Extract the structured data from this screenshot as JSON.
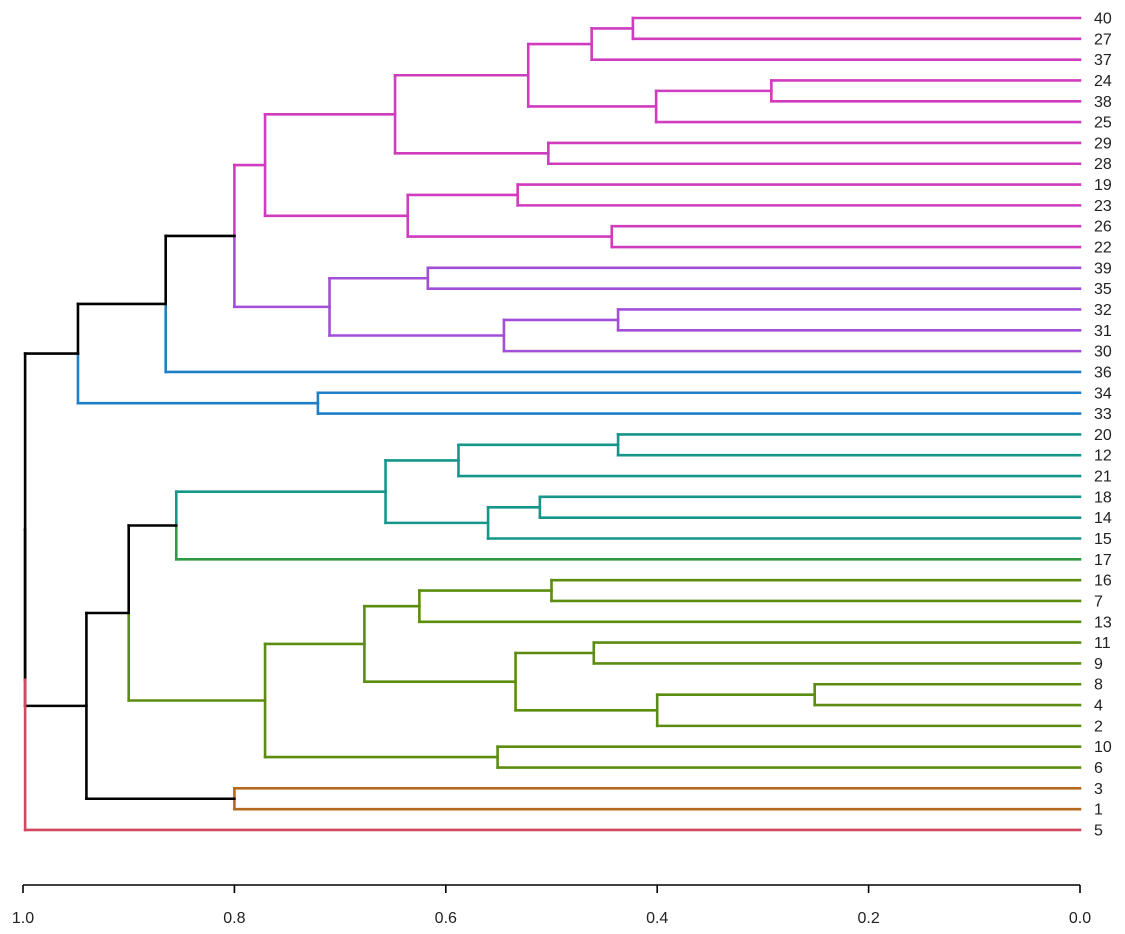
{
  "chart_data": {
    "type": "dendrogram",
    "orientation": "horizontal",
    "xlim": [
      1.0,
      0.0
    ],
    "x_ticks": [
      1.0,
      0.8,
      0.6,
      0.4,
      0.2,
      0.0
    ],
    "x_tick_labels": [
      "1.0",
      "0.8",
      "0.6",
      "0.4",
      "0.2",
      "0.0"
    ],
    "leaf_order": [
      "40",
      "27",
      "37",
      "24",
      "38",
      "25",
      "29",
      "28",
      "19",
      "23",
      "26",
      "22",
      "39",
      "35",
      "32",
      "31",
      "30",
      "36",
      "34",
      "33",
      "20",
      "12",
      "21",
      "18",
      "14",
      "15",
      "17",
      "16",
      "7",
      "13",
      "11",
      "9",
      "8",
      "4",
      "2",
      "10",
      "6",
      "3",
      "1",
      "5"
    ],
    "colors": {
      "magenta": "#d03cbe",
      "purple": "#a24fd8",
      "blue": "#1f7fc6",
      "teal": "#16968a",
      "green": "#2f9a42",
      "olive": "#5c8c10",
      "brown": "#b46a1e",
      "red": "#d2485f",
      "black": "#000000"
    },
    "merges": [
      {
        "id": "m40_27",
        "left": "40",
        "right": "27",
        "height": 0.423,
        "color": "magenta"
      },
      {
        "id": "m40_27_37",
        "left": "m40_27",
        "right": "37",
        "height": 0.462,
        "color": "magenta"
      },
      {
        "id": "m24_38",
        "left": "24",
        "right": "38",
        "height": 0.292,
        "color": "magenta"
      },
      {
        "id": "m24_38_25",
        "left": "m24_38",
        "right": "25",
        "height": 0.401,
        "color": "magenta"
      },
      {
        "id": "mA",
        "left": "m40_27_37",
        "right": "m24_38_25",
        "height": 0.522,
        "color": "magenta"
      },
      {
        "id": "m29_28",
        "left": "29",
        "right": "28",
        "height": 0.503,
        "color": "magenta"
      },
      {
        "id": "mB",
        "left": "mA",
        "right": "m29_28",
        "height": 0.648,
        "color": "magenta"
      },
      {
        "id": "m19_23",
        "left": "19",
        "right": "23",
        "height": 0.532,
        "color": "magenta"
      },
      {
        "id": "m26_22",
        "left": "26",
        "right": "22",
        "height": 0.443,
        "color": "magenta"
      },
      {
        "id": "mC",
        "left": "m19_23",
        "right": "m26_22",
        "height": 0.636,
        "color": "magenta"
      },
      {
        "id": "mD",
        "left": "mB",
        "right": "mC",
        "height": 0.771,
        "color": "magenta"
      },
      {
        "id": "m39_35",
        "left": "39",
        "right": "35",
        "height": 0.617,
        "color": "purple"
      },
      {
        "id": "m32_31",
        "left": "32",
        "right": "31",
        "height": 0.437,
        "color": "purple"
      },
      {
        "id": "m32_31_30",
        "left": "m32_31",
        "right": "30",
        "height": 0.545,
        "color": "purple"
      },
      {
        "id": "mE",
        "left": "m39_35",
        "right": "m32_31_30",
        "height": 0.71,
        "color": "purple"
      },
      {
        "id": "mF",
        "left": "mD",
        "right": "mE",
        "height": 0.8,
        "color": "magenta",
        "left_color": "magenta",
        "right_color": "purple"
      },
      {
        "id": "mG",
        "left": "mF",
        "right": "36",
        "height": 0.865,
        "color": "black",
        "left_color": "black",
        "right_color": "blue"
      },
      {
        "id": "m34_33",
        "left": "34",
        "right": "33",
        "height": 0.721,
        "color": "blue"
      },
      {
        "id": "mH",
        "left": "mG",
        "right": "m34_33",
        "height": 0.948,
        "color": "black",
        "left_color": "black",
        "right_color": "blue"
      },
      {
        "id": "m20_12",
        "left": "20",
        "right": "12",
        "height": 0.437,
        "color": "teal"
      },
      {
        "id": "m20_12_21",
        "left": "m20_12",
        "right": "21",
        "height": 0.588,
        "color": "teal"
      },
      {
        "id": "m18_14",
        "left": "18",
        "right": "14",
        "height": 0.511,
        "color": "teal"
      },
      {
        "id": "m18_14_15",
        "left": "m18_14",
        "right": "15",
        "height": 0.56,
        "color": "teal"
      },
      {
        "id": "mI",
        "left": "m20_12_21",
        "right": "m18_14_15",
        "height": 0.657,
        "color": "teal"
      },
      {
        "id": "mJ",
        "left": "mI",
        "right": "17",
        "height": 0.855,
        "color": "teal",
        "left_color": "teal",
        "right_color": "green"
      },
      {
        "id": "m16_7",
        "left": "16",
        "right": "7",
        "height": 0.5,
        "color": "olive"
      },
      {
        "id": "m16_7_13",
        "left": "m16_7",
        "right": "13",
        "height": 0.625,
        "color": "olive"
      },
      {
        "id": "m11_9",
        "left": "11",
        "right": "9",
        "height": 0.46,
        "color": "olive"
      },
      {
        "id": "m8_4",
        "left": "8",
        "right": "4",
        "height": 0.251,
        "color": "olive"
      },
      {
        "id": "m8_4_2",
        "left": "m8_4",
        "right": "2",
        "height": 0.4,
        "color": "olive"
      },
      {
        "id": "mK",
        "left": "m11_9",
        "right": "m8_4_2",
        "height": 0.534,
        "color": "olive"
      },
      {
        "id": "mL",
        "left": "m16_7_13",
        "right": "mK",
        "height": 0.677,
        "color": "olive"
      },
      {
        "id": "m10_6",
        "left": "10",
        "right": "6",
        "height": 0.551,
        "color": "olive"
      },
      {
        "id": "mM",
        "left": "mL",
        "right": "m10_6",
        "height": 0.771,
        "color": "olive"
      },
      {
        "id": "mN",
        "left": "mJ",
        "right": "mM",
        "height": 0.9,
        "color": "black",
        "left_color": "black",
        "right_color": "olive"
      },
      {
        "id": "m3_1",
        "left": "3",
        "right": "1",
        "height": 0.8,
        "color": "brown"
      },
      {
        "id": "mO",
        "left": "mN",
        "right": "m3_1",
        "height": 0.94,
        "color": "black",
        "left_color": "black",
        "right_color": "black"
      },
      {
        "id": "mRoot",
        "left": "mH",
        "right": "mO",
        "height": 0.998,
        "color": "black"
      },
      {
        "id": "mTop",
        "left": "mRoot",
        "right": "5",
        "height": 0.998,
        "color": "red",
        "left_color": "black",
        "right_color": "red"
      }
    ]
  }
}
